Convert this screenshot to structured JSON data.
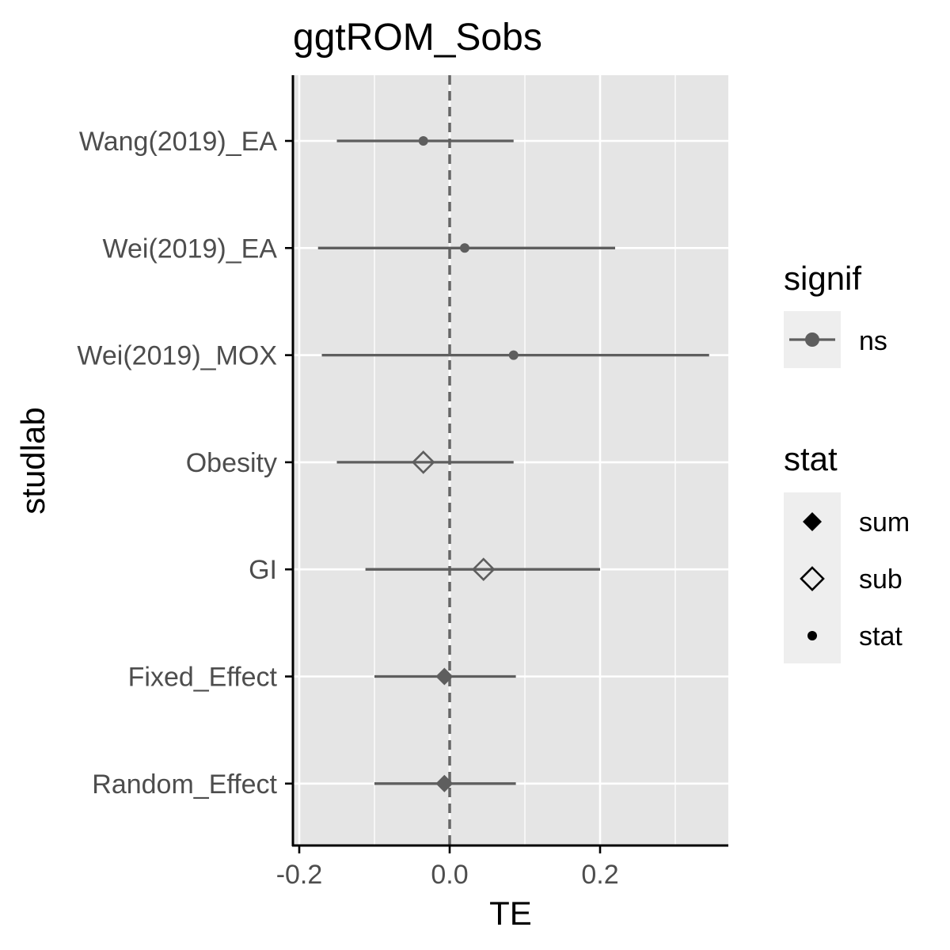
{
  "chart_data": {
    "type": "forest",
    "title": "ggtROM_Sobs",
    "xlabel": "TE",
    "ylabel": "studlab",
    "xlim": [
      -0.205,
      0.37
    ],
    "x_ticks": [
      -0.2,
      0.0,
      0.2
    ],
    "x_tick_labels": [
      "-0.2",
      "0.0",
      "0.2"
    ],
    "reference_line": 0.0,
    "grid": true,
    "rows": [
      {
        "label": "Wang(2019)_EA",
        "estimate": -0.035,
        "lower": -0.15,
        "upper": 0.085,
        "stat": "stat"
      },
      {
        "label": "Wei(2019)_EA",
        "estimate": 0.02,
        "lower": -0.175,
        "upper": 0.22,
        "stat": "stat"
      },
      {
        "label": "Wei(2019)_MOX",
        "estimate": 0.085,
        "lower": -0.17,
        "upper": 0.345,
        "stat": "stat"
      },
      {
        "label": "Obesity",
        "estimate": -0.035,
        "lower": -0.15,
        "upper": 0.085,
        "stat": "sub"
      },
      {
        "label": "GI",
        "estimate": 0.045,
        "lower": -0.112,
        "upper": 0.2,
        "stat": "sub"
      },
      {
        "label": "Fixed_Effect",
        "estimate": -0.007,
        "lower": -0.1,
        "upper": 0.088,
        "stat": "sum"
      },
      {
        "label": "Random_Effect",
        "estimate": -0.007,
        "lower": -0.1,
        "upper": 0.088,
        "stat": "sum"
      }
    ],
    "legends": [
      {
        "title": "signif",
        "entries": [
          {
            "label": "ns",
            "shape": "point-line"
          }
        ]
      },
      {
        "title": "stat",
        "entries": [
          {
            "label": "sum",
            "shape": "filled-diamond"
          },
          {
            "label": "sub",
            "shape": "open-diamond"
          },
          {
            "label": "stat",
            "shape": "dot"
          }
        ]
      }
    ],
    "legend_position": "right",
    "colors": {
      "panel_bg": "#e5e5e5",
      "grid": "#ffffff",
      "series": "#5e5e5e",
      "axis": "#000000",
      "tick_text": "#4d4d4d",
      "legend_key_bg": "#eeeeee"
    }
  }
}
